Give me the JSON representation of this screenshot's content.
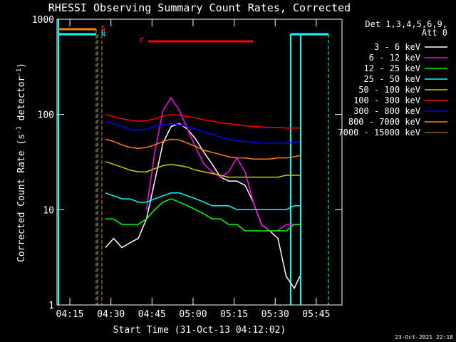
{
  "chart_data": {
    "type": "line",
    "title": "RHESSI Observing Summary Count Rates, Corrected",
    "xlabel": "Start Time (31-Oct-13 04:12:02)",
    "ylabel": [
      "Corrected Count Rate (s",
      "-1",
      " detector",
      "-1",
      ")"
    ],
    "legend_header": [
      "Det 1,3,4,5,6,9,",
      "Att 0"
    ],
    "footer": "23-Oct-2021 22:18",
    "flags": [
      "S",
      "N",
      "F"
    ],
    "log_y": true,
    "xlim": [
      10.3,
      114.4
    ],
    "xticks": [
      {
        "value": 15,
        "label": "04:15"
      },
      {
        "value": 30,
        "label": "04:30"
      },
      {
        "value": 45,
        "label": "04:45"
      },
      {
        "value": 60,
        "label": "05:00"
      },
      {
        "value": 75,
        "label": "05:15"
      },
      {
        "value": 90,
        "label": "05:30"
      },
      {
        "value": 105,
        "label": "05:45"
      }
    ],
    "ylim": [
      1,
      1000
    ],
    "yticks": [
      1,
      10,
      100,
      1000
    ],
    "x": [
      28,
      31,
      34,
      37,
      40,
      43,
      46,
      49,
      52,
      55,
      58,
      61,
      64,
      67,
      70,
      73,
      76,
      79,
      82,
      85,
      88,
      91,
      94,
      97,
      99
    ],
    "series": [
      {
        "name": "3 - 6 keV",
        "color": "#ffffff",
        "values": [
          4,
          5,
          4,
          4.5,
          5,
          8,
          20,
          50,
          75,
          80,
          70,
          55,
          40,
          30,
          22,
          20,
          20,
          18,
          12,
          7,
          6,
          5,
          2,
          1.5,
          2
        ]
      },
      {
        "name": "6 - 12 keV",
        "color": "#ff00ff",
        "values": [
          null,
          null,
          null,
          null,
          null,
          10,
          40,
          110,
          150,
          110,
          70,
          45,
          30,
          25,
          22,
          25,
          35,
          25,
          12,
          7,
          6,
          6,
          7,
          7,
          7
        ]
      },
      {
        "name": "12 - 25 keV",
        "color": "#00ff00",
        "values": [
          8,
          8,
          7,
          7,
          7,
          8,
          10,
          12,
          13,
          12,
          11,
          10,
          9,
          8,
          8,
          7,
          7,
          6,
          6,
          6,
          6,
          6,
          6,
          7,
          7
        ]
      },
      {
        "name": "25 - 50 keV",
        "color": "#00ffff",
        "values": [
          15,
          14,
          13,
          13,
          12,
          12,
          13,
          14,
          15,
          15,
          14,
          13,
          12,
          11,
          11,
          11,
          10,
          10,
          10,
          10,
          10,
          10,
          10,
          11,
          11
        ]
      },
      {
        "name": "50 - 100 keV",
        "color": "#d2c800",
        "values": [
          32,
          30,
          28,
          26,
          25,
          25,
          27,
          29,
          30,
          29,
          28,
          26,
          25,
          24,
          23,
          22,
          22,
          22,
          22,
          22,
          22,
          22,
          23,
          23,
          23
        ]
      },
      {
        "name": "100 - 300 keV",
        "color": "#ff0000",
        "values": [
          100,
          95,
          90,
          87,
          85,
          86,
          90,
          96,
          100,
          98,
          95,
          92,
          88,
          85,
          82,
          80,
          78,
          76,
          75,
          74,
          73,
          73,
          72,
          72,
          72
        ]
      },
      {
        "name": "300 - 800 keV",
        "color": "#0000ff",
        "values": [
          85,
          80,
          75,
          70,
          68,
          70,
          75,
          78,
          80,
          78,
          74,
          70,
          65,
          62,
          58,
          55,
          53,
          52,
          51,
          50,
          50,
          50,
          50,
          51,
          52
        ]
      },
      {
        "name": "800 - 7000 keV",
        "color": "#ff8000",
        "values": [
          55,
          52,
          48,
          45,
          44,
          45,
          48,
          52,
          55,
          54,
          50,
          46,
          42,
          40,
          38,
          36,
          35,
          35,
          34,
          34,
          34,
          35,
          35,
          36,
          37
        ]
      },
      {
        "name": "7000 - 15000 keV",
        "color": "#8c6400",
        "values": [
          null,
          null,
          null,
          null,
          null,
          null,
          null,
          null,
          null,
          null,
          null,
          null,
          null,
          null,
          null,
          null,
          null,
          null,
          null,
          null,
          null,
          null,
          null,
          null,
          null
        ]
      }
    ]
  }
}
